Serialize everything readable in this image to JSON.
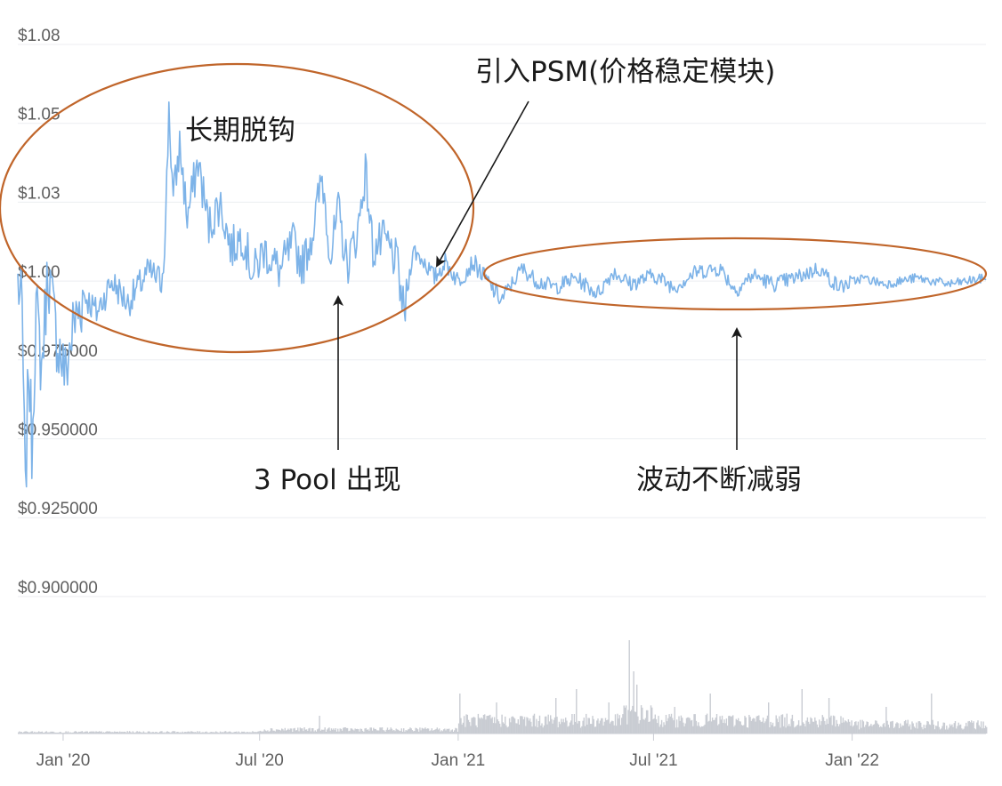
{
  "chart_data": {
    "type": "line",
    "title": "",
    "xlabel": "",
    "ylabel": "",
    "y_ticks": [
      "$1.08",
      "$1.05",
      "$1.03",
      "$1.00",
      "$0.975000",
      "$0.950000",
      "$0.925000",
      "$0.900000"
    ],
    "y_tick_values": [
      1.075,
      1.05,
      1.025,
      1.0,
      0.975,
      0.95,
      0.925,
      0.9
    ],
    "ylim": [
      0.9,
      1.08
    ],
    "x_ticks": [
      "Jan '20",
      "Jul '20",
      "Jan '21",
      "Jul '21",
      "Jan '22"
    ],
    "x_tick_dates": [
      "2020-01-01",
      "2020-07-01",
      "2021-01-01",
      "2021-07-01",
      "2022-01-01"
    ],
    "xlim": [
      "2019-11-20",
      "2022-05-05"
    ],
    "grid": "horizontal",
    "price_color": "#7db3e8",
    "volume_color": "#c9ccd3",
    "series": [
      {
        "values_by_date": [
          [
            "2019-11-20",
            1.0
          ],
          [
            "2019-11-24",
            0.99
          ],
          [
            "2019-11-27",
            0.93
          ],
          [
            "2019-11-30",
            0.975
          ],
          [
            "2019-12-03",
            0.948
          ],
          [
            "2019-12-07",
            0.992
          ],
          [
            "2019-12-12",
            0.972
          ],
          [
            "2019-12-18",
            1.004
          ],
          [
            "2019-12-25",
            0.984
          ],
          [
            "2020-01-03",
            0.97
          ],
          [
            "2020-01-10",
            0.985
          ],
          [
            "2020-01-20",
            0.996
          ],
          [
            "2020-02-01",
            0.99
          ],
          [
            "2020-02-15",
            1.0
          ],
          [
            "2020-03-01",
            0.993
          ],
          [
            "2020-03-20",
            1.003
          ],
          [
            "2020-04-01",
            1.0
          ],
          [
            "2020-04-05",
            1.018
          ],
          [
            "2020-04-08",
            1.056
          ],
          [
            "2020-04-12",
            1.025
          ],
          [
            "2020-04-18",
            1.043
          ],
          [
            "2020-04-25",
            1.02
          ],
          [
            "2020-05-05",
            1.038
          ],
          [
            "2020-05-15",
            1.017
          ],
          [
            "2020-05-25",
            1.025
          ],
          [
            "2020-06-05",
            1.01
          ],
          [
            "2020-06-15",
            1.015
          ],
          [
            "2020-06-25",
            1.002
          ],
          [
            "2020-07-05",
            1.01
          ],
          [
            "2020-07-20",
            1.003
          ],
          [
            "2020-08-01",
            1.012
          ],
          [
            "2020-08-10",
            1.005
          ],
          [
            "2020-08-20",
            1.017
          ],
          [
            "2020-08-28",
            1.033
          ],
          [
            "2020-09-05",
            1.008
          ],
          [
            "2020-09-12",
            1.022
          ],
          [
            "2020-09-20",
            1.005
          ],
          [
            "2020-09-30",
            1.016
          ],
          [
            "2020-10-07",
            1.035
          ],
          [
            "2020-10-14",
            1.01
          ],
          [
            "2020-10-25",
            1.013
          ],
          [
            "2020-11-05",
            1.006
          ],
          [
            "2020-11-12",
            0.989
          ],
          [
            "2020-11-20",
            1.01
          ],
          [
            "2020-12-01",
            1.006
          ],
          [
            "2020-12-10",
            1.001
          ],
          [
            "2020-12-20",
            1.006
          ],
          [
            "2021-01-01",
            1.0
          ],
          [
            "2021-01-15",
            1.006
          ],
          [
            "2021-02-01",
            0.998
          ],
          [
            "2021-02-10",
            0.994
          ],
          [
            "2021-03-01",
            1.004
          ],
          [
            "2021-03-15",
            1.0
          ],
          [
            "2021-04-01",
            0.998
          ],
          [
            "2021-04-20",
            1.001
          ],
          [
            "2021-05-10",
            0.996
          ],
          [
            "2021-05-25",
            1.003
          ],
          [
            "2021-06-10",
            0.999
          ],
          [
            "2021-07-01",
            1.002
          ],
          [
            "2021-07-20",
            0.998
          ],
          [
            "2021-08-10",
            1.003
          ],
          [
            "2021-09-01",
            1.004
          ],
          [
            "2021-09-15",
            0.997
          ],
          [
            "2021-10-01",
            1.002
          ],
          [
            "2021-10-20",
            0.999
          ],
          [
            "2021-11-10",
            1.001
          ],
          [
            "2021-12-01",
            1.004
          ],
          [
            "2021-12-20",
            0.998
          ],
          [
            "2022-01-10",
            1.001
          ],
          [
            "2022-02-01",
            0.999
          ],
          [
            "2022-03-01",
            1.001
          ],
          [
            "2022-04-01",
            0.999
          ],
          [
            "2022-05-05",
            1.001
          ]
        ]
      }
    ],
    "volume_relative": "peaks around Jun '21 (highest), with notable spikes around Feb '21, Apr '21, Nov '21",
    "annotations": {
      "long_depeg": "长期脱钩",
      "psm": "引入PSM(价格稳定模块)",
      "pool3": "3 Pool 出现",
      "volatility": "波动不断减弱"
    }
  }
}
